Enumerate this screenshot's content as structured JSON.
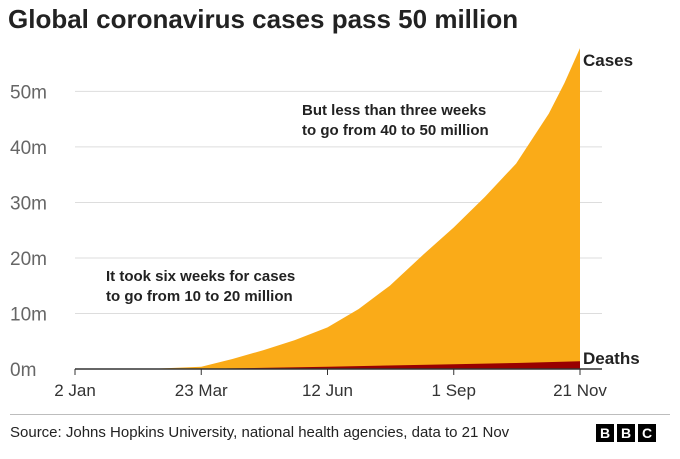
{
  "title": "Global coronavirus cases pass 50 million",
  "source": "Source: Johns Hopkins University, national health agencies, data to 21 Nov",
  "logo": [
    "B",
    "B",
    "C"
  ],
  "colors": {
    "cases": "#FAAB18",
    "deaths": "#990000",
    "axis": "#333333",
    "grid": "#DDDDDD",
    "text": "#222222"
  },
  "chart_data": {
    "type": "area",
    "title": "Global coronavirus cases pass 50 million",
    "xlabel": "",
    "ylabel": "",
    "x_ticks": [
      "2 Jan",
      "23 Mar",
      "12 Jun",
      "1 Sep",
      "21 Nov"
    ],
    "y_ticks": [
      "0m",
      "10m",
      "20m",
      "30m",
      "40m",
      "50m"
    ],
    "xlim": [
      "2 Jan",
      "21 Nov"
    ],
    "ylim": [
      0,
      58
    ],
    "y_unit": "million",
    "grid": "horizontal",
    "series": [
      {
        "name": "Cases",
        "color": "#FAAB18",
        "points": [
          [
            "2 Jan",
            0
          ],
          [
            "23 Feb",
            0.08
          ],
          [
            "23 Mar",
            0.4
          ],
          [
            "12 Apr",
            1.8
          ],
          [
            "2 May",
            3.4
          ],
          [
            "22 May",
            5.2
          ],
          [
            "12 Jun",
            7.5
          ],
          [
            "2 Jul",
            10.8
          ],
          [
            "22 Jul",
            15
          ],
          [
            "12 Aug",
            20.5
          ],
          [
            "1 Sep",
            25.5
          ],
          [
            "21 Sep",
            31
          ],
          [
            "11 Oct",
            37
          ],
          [
            "1 Nov",
            46
          ],
          [
            "11 Nov",
            51.5
          ],
          [
            "21 Nov",
            57.8
          ]
        ]
      },
      {
        "name": "Deaths",
        "color": "#990000",
        "points": [
          [
            "2 Jan",
            0
          ],
          [
            "23 Mar",
            0.02
          ],
          [
            "12 Apr",
            0.1
          ],
          [
            "12 Jun",
            0.42
          ],
          [
            "1 Sep",
            0.86
          ],
          [
            "11 Oct",
            1.08
          ],
          [
            "21 Nov",
            1.38
          ]
        ]
      }
    ],
    "annotations": [
      {
        "lines": [
          "It took six weeks for cases",
          "to go from 10 to 20 million"
        ],
        "x": "12 Apr",
        "y": 18
      },
      {
        "lines": [
          "But less than three weeks",
          "to go from 40 to 50 million"
        ],
        "x": "1 Sep",
        "y": 46
      }
    ]
  }
}
